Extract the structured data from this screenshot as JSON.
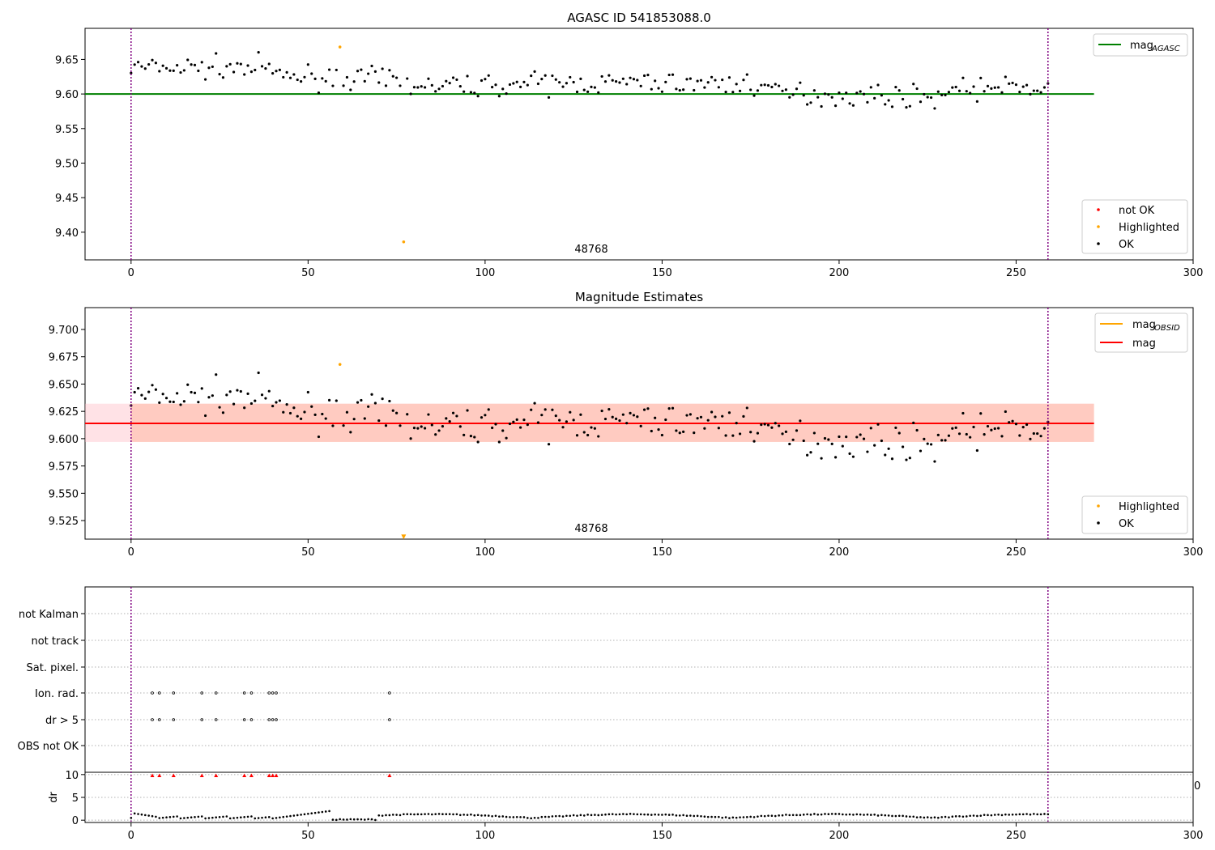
{
  "chart_data": [
    {
      "type": "scatter",
      "title": "AGASC ID 541853088.0",
      "xlim": [
        -13,
        300
      ],
      "ylim": [
        9.36,
        9.695
      ],
      "xticks": [
        0,
        50,
        100,
        150,
        200,
        250,
        300
      ],
      "yticks": [
        9.4,
        9.45,
        9.5,
        9.55,
        9.6,
        9.65
      ],
      "ytick_labels": [
        "9.40",
        "9.45",
        "9.50",
        "9.55",
        "9.60",
        "9.65"
      ],
      "obsid_label": "48768",
      "obsid_label_x": 130,
      "vlines": [
        0,
        259
      ],
      "mag_agasc": 9.6,
      "mag_agasc_x_extent": [
        -13,
        272
      ],
      "legend_lines": [
        {
          "label": "mag",
          "subscript": "AGASC",
          "color": "#008000"
        }
      ],
      "legend_points": [
        {
          "label": "not OK",
          "color": "#ff0000"
        },
        {
          "label": "Highlighted",
          "color": "#ffa500"
        },
        {
          "label": "OK",
          "color": "#000000"
        }
      ],
      "highlighted_points": [
        {
          "x": 59,
          "y": 9.668
        },
        {
          "x": 77,
          "y": 9.386
        }
      ]
    },
    {
      "type": "scatter",
      "title": "Magnitude Estimates",
      "xlim": [
        -13,
        300
      ],
      "ylim": [
        9.508,
        9.72
      ],
      "xticks": [
        0,
        50,
        100,
        150,
        200,
        250,
        300
      ],
      "yticks": [
        9.525,
        9.55,
        9.575,
        9.6,
        9.625,
        9.65,
        9.675,
        9.7
      ],
      "ytick_labels": [
        "9.525",
        "9.550",
        "9.575",
        "9.600",
        "9.625",
        "9.650",
        "9.675",
        "9.700"
      ],
      "obsid_label": "48768",
      "obsid_label_x": 130,
      "vlines": [
        0,
        259
      ],
      "mag": 9.614,
      "mag_band": [
        9.597,
        9.632
      ],
      "mag_obsid": 9.614,
      "mag_x_extent": [
        -13,
        272
      ],
      "obsid_x_extent": [
        0,
        272
      ],
      "legend_lines": [
        {
          "label": "mag",
          "subscript": "OBSID",
          "color": "#ffa500"
        },
        {
          "label": "mag",
          "subscript": "",
          "color": "#ff0000"
        }
      ],
      "legend_points": [
        {
          "label": "Highlighted",
          "color": "#ffa500"
        },
        {
          "label": "OK",
          "color": "#000000"
        }
      ],
      "highlighted_points": [
        {
          "x": 59,
          "y": 9.668
        }
      ],
      "offscale_marker": {
        "x": 77,
        "y": 9.51
      }
    },
    {
      "type": "scatter",
      "title": "",
      "xlim": [
        -13,
        300
      ],
      "xticks": [
        0,
        50,
        100,
        150,
        200,
        250,
        300
      ],
      "flag_rows": [
        "not Kalman",
        "not track",
        "Sat. pixel.",
        "Ion. rad.",
        "dr > 5",
        "OBS not OK"
      ],
      "flag_points": {
        "Ion. rad.": [
          6,
          8,
          12,
          20,
          24,
          32,
          34,
          39,
          40,
          41,
          73
        ],
        "dr > 5": [
          6,
          8,
          12,
          20,
          24,
          32,
          34,
          39,
          40,
          41,
          73
        ]
      },
      "dr_ylabel": "dr",
      "dr_ylim": [
        -0.5,
        10.5
      ],
      "dr_yticks": [
        0,
        5,
        10
      ],
      "dr_ytick_labels": [
        "0",
        "5",
        "10"
      ],
      "dr_outliers": [
        6,
        8,
        12,
        20,
        24,
        32,
        34,
        39,
        40,
        41,
        73
      ],
      "dr_outlier_value": 9.8,
      "right_edge_label": "0",
      "vlines": [
        0,
        259
      ]
    }
  ]
}
